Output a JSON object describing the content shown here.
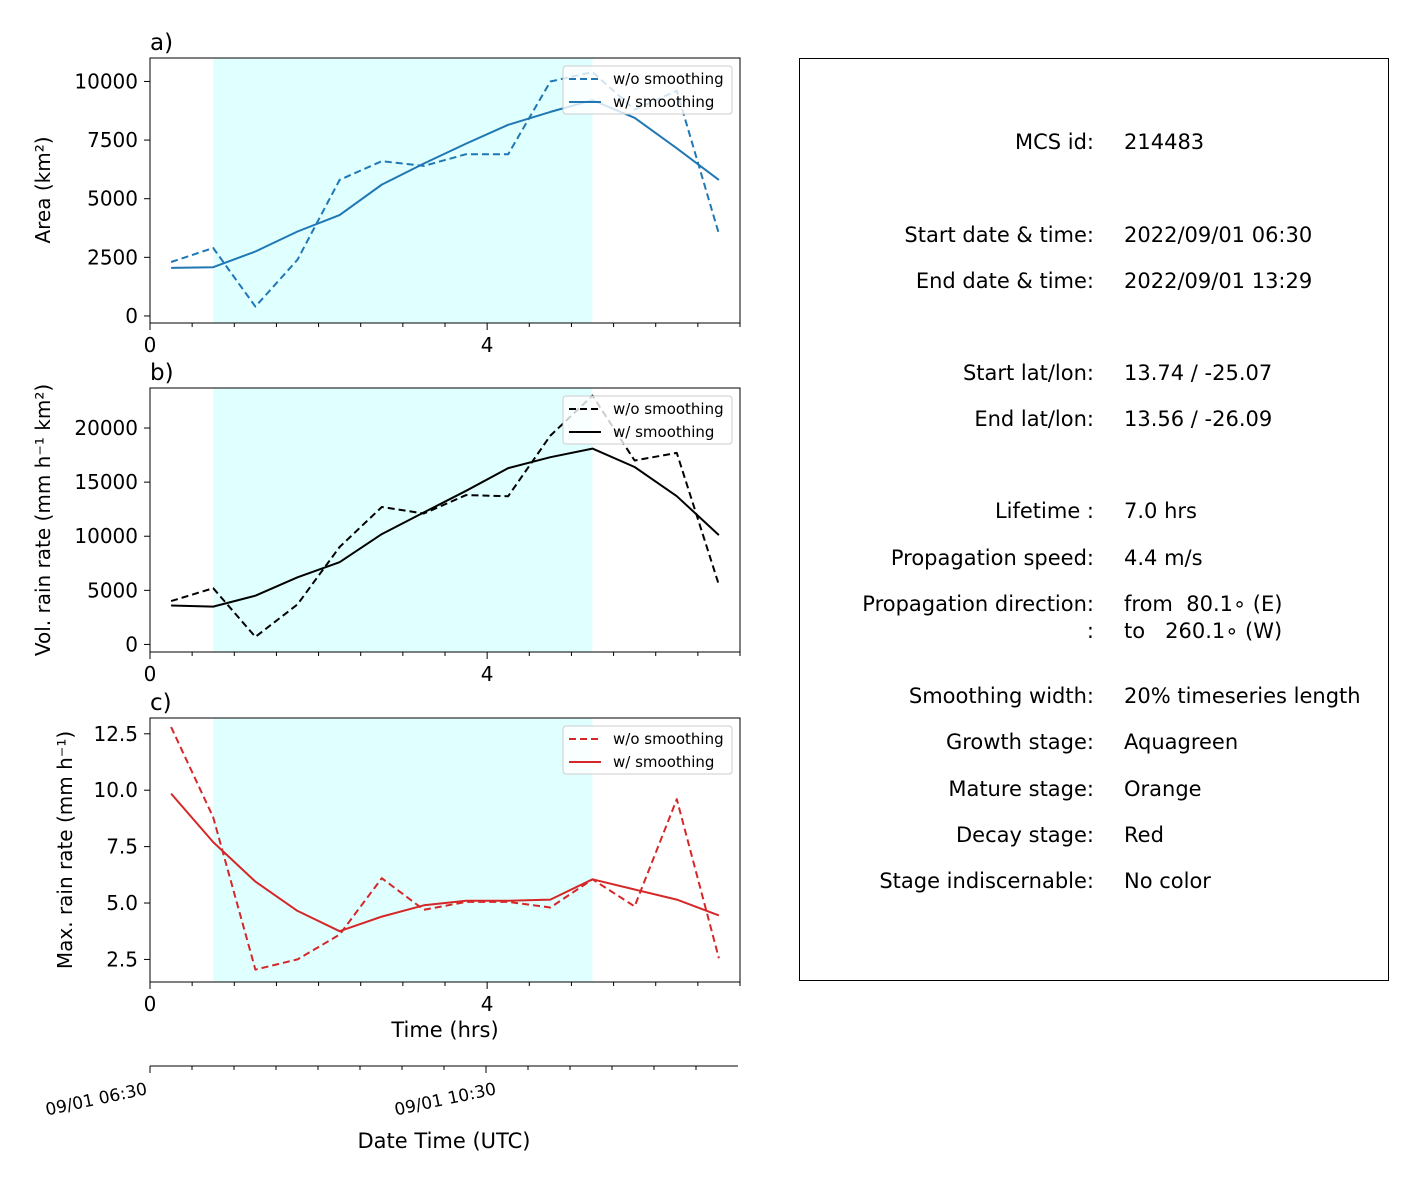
{
  "time_axis": {
    "xlabel": "Time (hrs)",
    "ticks": [
      0,
      4
    ]
  },
  "date_axis": {
    "xlabel": "Date Time (UTC)",
    "tick_labels": [
      "09/01 06:30",
      "09/01 10:30"
    ]
  },
  "legend": {
    "raw_label": "w/o smoothing",
    "smooth_label": "w/ smoothing"
  },
  "stages": {
    "growth_color": "#e0ffff",
    "growth_x_range": [
      0.75,
      5.25
    ]
  },
  "chart_data": [
    {
      "type": "line",
      "panel_label": "a)",
      "ylabel": "Area  (km²)",
      "color": "#1f77b4",
      "xlim": [
        0,
        7
      ],
      "ylim": [
        -300,
        11000
      ],
      "yticks": [
        0,
        2500,
        5000,
        7500,
        10000
      ],
      "yticklabels": [
        "0",
        "2500",
        "5000",
        "7500",
        "10000"
      ],
      "x": [
        0.25,
        0.75,
        1.25,
        1.75,
        2.25,
        2.75,
        3.25,
        3.75,
        4.25,
        4.75,
        5.25,
        5.75,
        6.25,
        6.75
      ],
      "series": [
        {
          "name": "w/o smoothing",
          "style": "dashed",
          "values": [
            2300,
            2900,
            400,
            2400,
            5800,
            6600,
            6400,
            6900,
            6900,
            10000,
            10400,
            8800,
            9600,
            3500
          ]
        },
        {
          "name": "w/ smoothing",
          "style": "solid",
          "values": [
            2050,
            2080,
            2750,
            3600,
            4300,
            5600,
            6500,
            7350,
            8150,
            8700,
            9200,
            8450,
            7150,
            5800
          ]
        }
      ]
    },
    {
      "type": "line",
      "panel_label": "b)",
      "ylabel": "Vol. rain rate (mm h⁻¹ km²)",
      "color": "#000000",
      "xlim": [
        0,
        7
      ],
      "ylim": [
        -700,
        23700
      ],
      "yticks": [
        0,
        5000,
        10000,
        15000,
        20000
      ],
      "yticklabels": [
        "0",
        "5000",
        "10000",
        "15000",
        "20000"
      ],
      "x": [
        0.25,
        0.75,
        1.25,
        1.75,
        2.25,
        2.75,
        3.25,
        3.75,
        4.25,
        4.75,
        5.25,
        5.75,
        6.25,
        6.75
      ],
      "series": [
        {
          "name": "w/o smoothing",
          "style": "dashed",
          "values": [
            4000,
            5200,
            700,
            3700,
            9000,
            12700,
            12100,
            13800,
            13700,
            19300,
            23000,
            17000,
            17700,
            5500
          ]
        },
        {
          "name": "w/ smoothing",
          "style": "solid",
          "values": [
            3600,
            3500,
            4500,
            6200,
            7600,
            10200,
            12200,
            14200,
            16300,
            17300,
            18100,
            16400,
            13700,
            10100
          ]
        }
      ]
    },
    {
      "type": "line",
      "panel_label": "c)",
      "ylabel": "Max. rain rate  (mm h⁻¹)",
      "color": "#d62728",
      "xlim": [
        0,
        7
      ],
      "ylim": [
        1.5,
        13.2
      ],
      "yticks": [
        2.5,
        5.0,
        7.5,
        10.0,
        12.5
      ],
      "yticklabels": [
        "2.5",
        "5.0",
        "7.5",
        "10.0",
        "12.5"
      ],
      "x": [
        0.25,
        0.75,
        1.25,
        1.75,
        2.25,
        2.75,
        3.25,
        3.75,
        4.25,
        4.75,
        5.25,
        5.75,
        6.25,
        6.75
      ],
      "series": [
        {
          "name": "w/o smoothing",
          "style": "dashed",
          "values": [
            12.8,
            8.8,
            2.05,
            2.5,
            3.6,
            6.1,
            4.7,
            5.05,
            5.05,
            4.8,
            6.05,
            4.85,
            9.6,
            2.55
          ]
        },
        {
          "name": "w/ smoothing",
          "style": "solid",
          "values": [
            9.85,
            7.7,
            5.95,
            4.65,
            3.75,
            4.4,
            4.9,
            5.1,
            5.1,
            5.15,
            6.05,
            5.6,
            5.15,
            4.45
          ]
        }
      ]
    }
  ],
  "info": {
    "rows": [
      {
        "label": "MCS id:",
        "value": "214483"
      },
      {
        "label": "Start date & time:",
        "value": "2022/09/01 06:30"
      },
      {
        "label": "End date & time:",
        "value": "2022/09/01 13:29"
      },
      {
        "label": "Start lat/lon:",
        "value": "13.74 / -25.07"
      },
      {
        "label": "End lat/lon:",
        "value": "13.56 / -26.09"
      },
      {
        "label": "Lifetime :",
        "value": "7.0 hrs"
      },
      {
        "label": "Propagation speed:",
        "value": "4.4 m/s"
      },
      {
        "label": "Propagation direction:",
        "value": "from  80.1∘ (E)"
      },
      {
        "label": ":",
        "value": "to   260.1∘ (W)"
      },
      {
        "label": "Smoothing width:",
        "value": "20% timeseries length"
      },
      {
        "label": "Growth stage:",
        "value": "Aquagreen"
      },
      {
        "label": "Mature stage:",
        "value": "Orange"
      },
      {
        "label": "Decay stage:",
        "value": "Red"
      },
      {
        "label": "Stage indiscernable:",
        "value": "No color"
      }
    ]
  }
}
